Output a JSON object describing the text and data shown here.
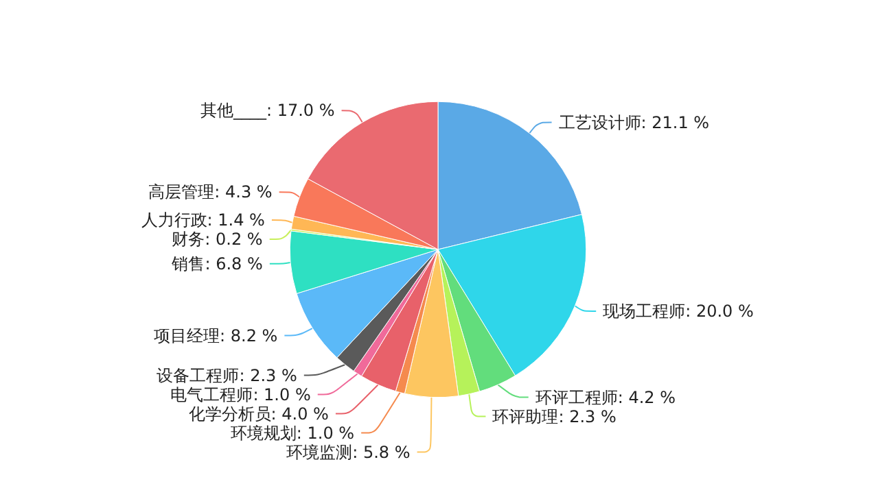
{
  "chart_data": {
    "type": "pie",
    "categories": [
      "工艺设计师",
      "现场工程师",
      "环评工程师",
      "环评助理",
      "环境监测",
      "环境规划",
      "化学分析员",
      "电气工程师",
      "设备工程师",
      "项目经理",
      "销售",
      "财务",
      "人力行政",
      "高层管理",
      "其他____"
    ],
    "values": [
      21.1,
      20.0,
      4.2,
      2.3,
      5.8,
      1.0,
      4.0,
      1.0,
      2.3,
      8.2,
      6.8,
      0.2,
      1.4,
      4.3,
      17.0
    ],
    "colors": [
      "#5aa9e6",
      "#2fd6ea",
      "#62dd7c",
      "#b6f25a",
      "#fdc660",
      "#f58a4e",
      "#e8616a",
      "#f06a9a",
      "#5a5a5a",
      "#5bb9f8",
      "#2ee0c2",
      "#c8ef5a",
      "#ffb755",
      "#f9785a",
      "#ea6a70"
    ],
    "value_labels": [
      "21.1 %",
      "20.0 %",
      "4.2 %",
      "2.3 %",
      "5.8 %",
      "1.0 %",
      "4.0 %",
      "1.0 %",
      "2.3 %",
      "8.2 %",
      "6.8 %",
      "0.2 %",
      "1.4 %",
      "4.3 %",
      "17.0 %"
    ]
  }
}
